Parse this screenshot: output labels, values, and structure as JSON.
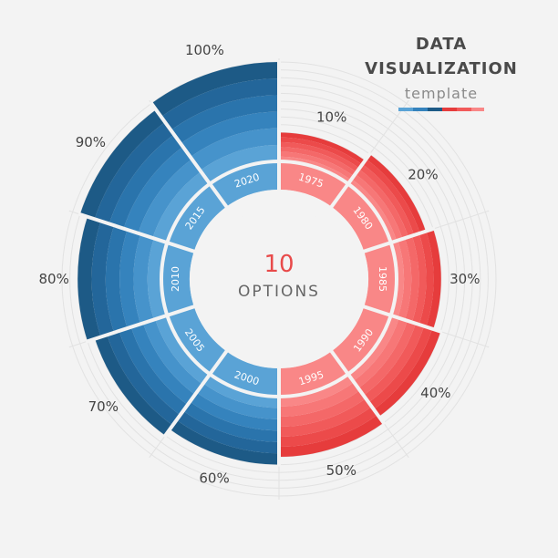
{
  "title": "DATA",
  "title2": "VISUALIZATION",
  "subtitle": "template",
  "center": {
    "number": "10",
    "label": "OPTIONS"
  },
  "colors": {
    "red": [
      "#e63c3c",
      "#ec4a4a",
      "#f15a5a",
      "#f46868",
      "#f77777",
      "#f98787"
    ],
    "blue": [
      "#1d5a86",
      "#23669a",
      "#2a74ac",
      "#3583bd",
      "#4693cb",
      "#5aa3d6"
    ]
  },
  "chart_data": {
    "type": "radial-bar",
    "categories": [
      "1975",
      "1980",
      "1985",
      "1990",
      "1995",
      "2000",
      "2005",
      "2010",
      "2015",
      "2020"
    ],
    "values": [
      10,
      20,
      30,
      40,
      50,
      60,
      70,
      80,
      90,
      100
    ],
    "value_labels": [
      "10%",
      "20%",
      "30%",
      "40%",
      "50%",
      "60%",
      "70%",
      "80%",
      "90%",
      "100%"
    ],
    "color_groups": [
      "red",
      "red",
      "red",
      "red",
      "red",
      "blue",
      "blue",
      "blue",
      "blue",
      "blue"
    ],
    "ylim": [
      0,
      100
    ],
    "grid": true
  }
}
